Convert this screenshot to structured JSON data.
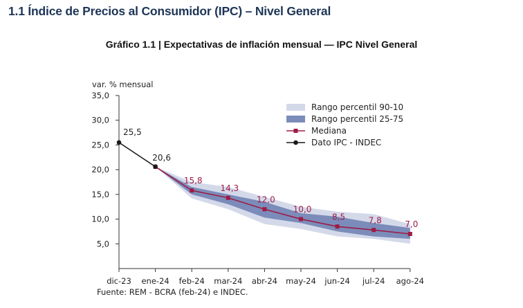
{
  "page": {
    "section_title": "1.1 Índice de Precios al Consumidor (IPC) – Nivel General"
  },
  "chart_data": {
    "type": "area",
    "title": "Gráfico 1.1 | Expectativas de inflación mensual — IPC Nivel General",
    "ylabel": "var. % mensual",
    "xlabel": "",
    "source": "Fuente: REM - BCRA (feb-24) e INDEC.",
    "categories": [
      "dic-23",
      "ene-24",
      "feb-24",
      "mar-24",
      "abr-24",
      "may-24",
      "jun-24",
      "jul-24",
      "ago-24"
    ],
    "ylim": [
      0,
      35
    ],
    "yticks": [
      5,
      10,
      15,
      20,
      25,
      30,
      35
    ],
    "ytick_labels": [
      "5,0",
      "10,0",
      "15,0",
      "20,0",
      "25,0",
      "30,0",
      "35,0"
    ],
    "grid": false,
    "legend_position": "top-right",
    "colors": {
      "p90_10": "#d4d9ea",
      "p75_25": "#7b8cba",
      "mediana": "#9e1b45",
      "dato": "#1a1a1a",
      "axis": "#333333"
    },
    "series": [
      {
        "name": "Rango percentil 90-10",
        "kind": "band",
        "x": [
          "ene-24",
          "feb-24",
          "mar-24",
          "abr-24",
          "may-24",
          "jun-24",
          "jul-24",
          "ago-24"
        ],
        "low": [
          20.6,
          14.2,
          12.0,
          9.0,
          8.0,
          6.5,
          6.0,
          5.0
        ],
        "high": [
          20.6,
          17.5,
          16.5,
          14.5,
          12.5,
          11.5,
          11.0,
          9.0
        ]
      },
      {
        "name": "Rango percentil 25-75",
        "kind": "band",
        "x": [
          "ene-24",
          "feb-24",
          "mar-24",
          "abr-24",
          "may-24",
          "jun-24",
          "jul-24",
          "ago-24"
        ],
        "low": [
          20.6,
          15.0,
          13.0,
          10.3,
          9.2,
          7.5,
          6.5,
          6.0
        ],
        "high": [
          20.6,
          16.5,
          15.0,
          13.5,
          11.2,
          10.5,
          9.2,
          8.2
        ]
      },
      {
        "name": "Mediana",
        "kind": "line",
        "x": [
          "ene-24",
          "feb-24",
          "mar-24",
          "abr-24",
          "may-24",
          "jun-24",
          "jul-24",
          "ago-24"
        ],
        "values": [
          20.6,
          15.8,
          14.3,
          12.0,
          10.0,
          8.5,
          7.8,
          7.0
        ],
        "labels": [
          "",
          "15,8",
          "14,3",
          "12,0",
          "10,0",
          "8,5",
          "7,8",
          "7,0"
        ]
      },
      {
        "name": "Dato IPC - INDEC",
        "kind": "line",
        "x": [
          "dic-23",
          "ene-24"
        ],
        "values": [
          25.5,
          20.6
        ],
        "labels": [
          "25,5",
          "20,6"
        ]
      }
    ]
  }
}
